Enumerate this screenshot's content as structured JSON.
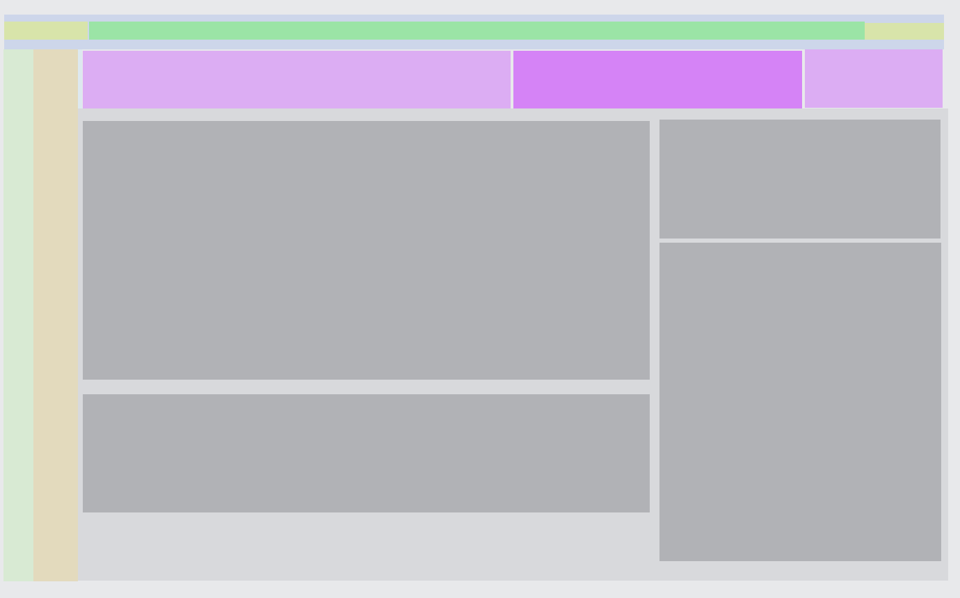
{
  "colors": {
    "page_background": "#e8e9eb",
    "topbar": "#cdd6ea",
    "topbar_blocks": "#d8e4aa",
    "search_bar": "#9be4a6",
    "left_rail": "#d8ead3",
    "second_rail": "#e3dabd",
    "tab": "#dcadf3",
    "tab_active": "#d583f6",
    "content_area": "#d8d9dc",
    "panel": "#b1b2b6"
  },
  "tabs": [
    {
      "active": false
    },
    {
      "active": true
    },
    {
      "active": false
    }
  ]
}
